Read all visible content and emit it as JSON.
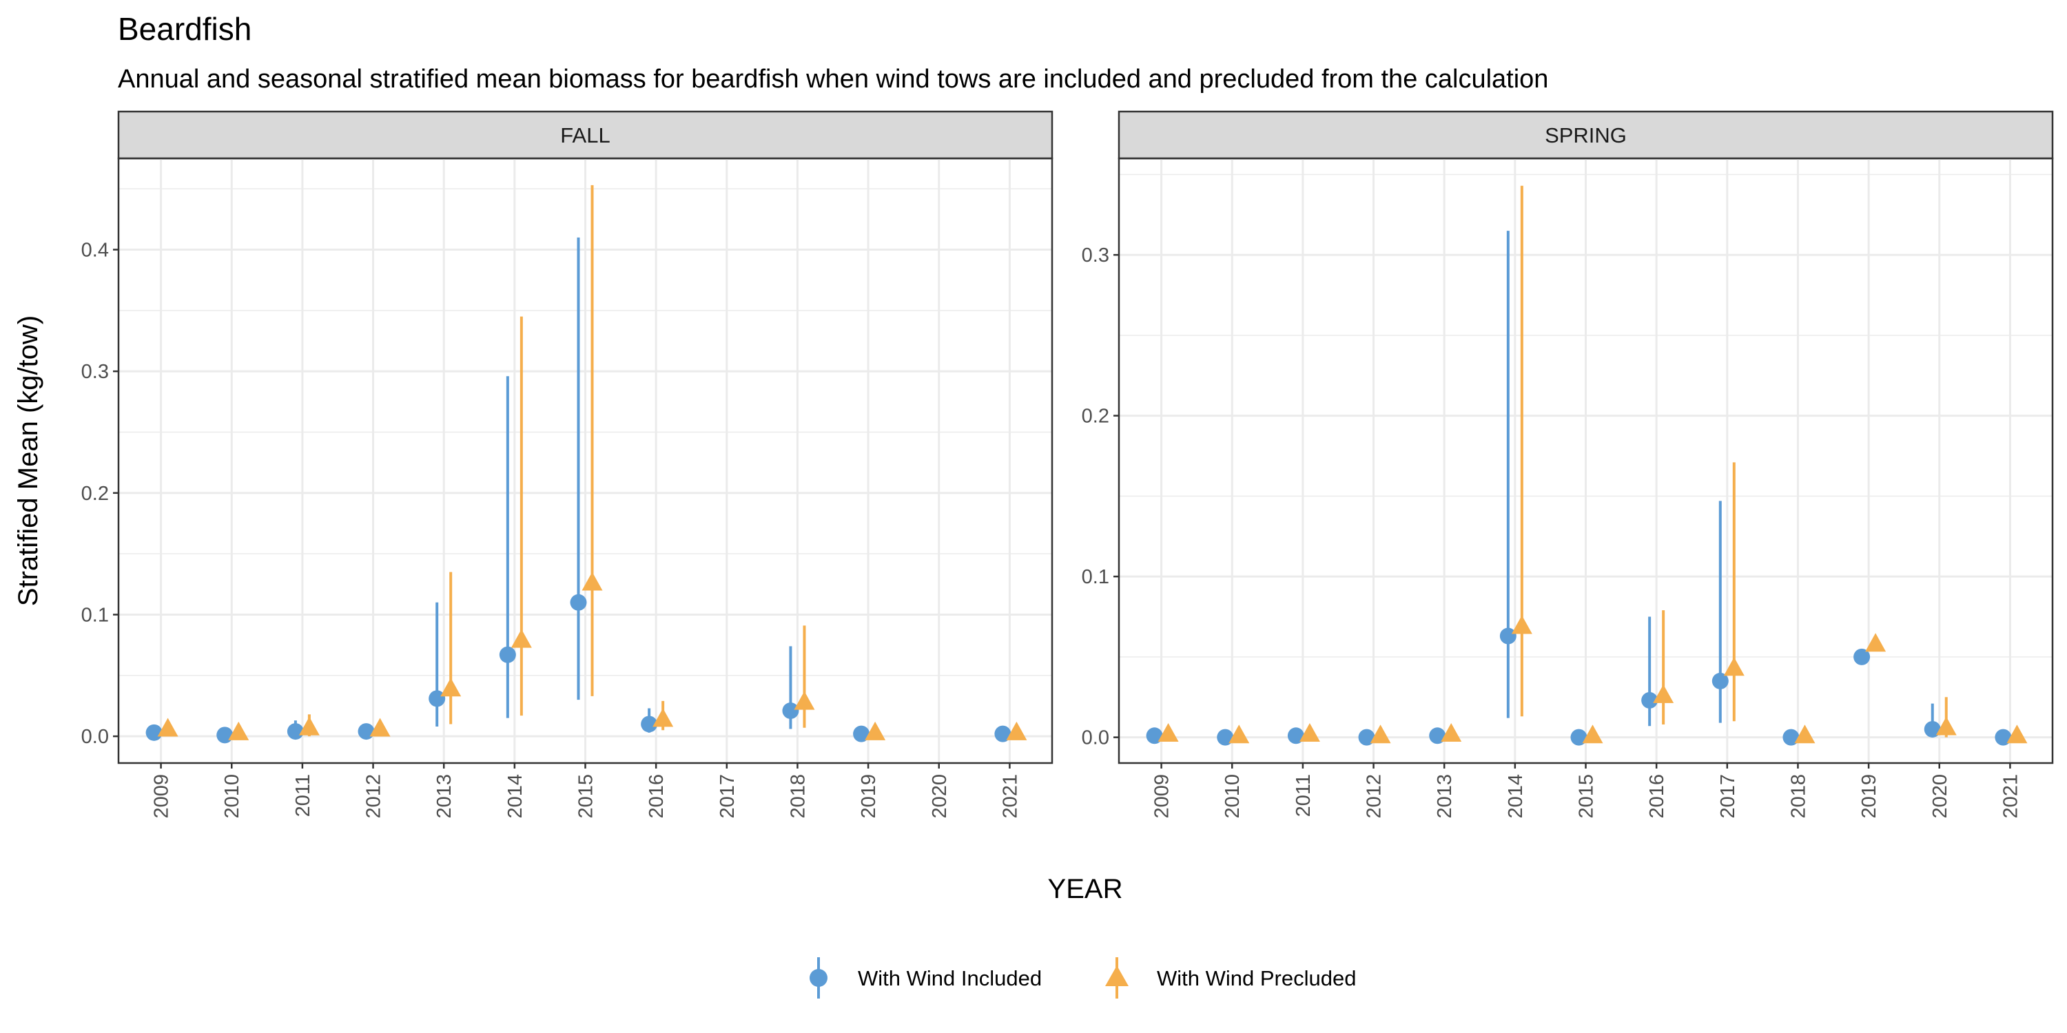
{
  "title": "Beardfish",
  "subtitle": "Annual and seasonal stratified mean biomass for beardfish when wind tows are included and precluded from the calculation",
  "xlabel": "YEAR",
  "ylabel": "Stratified Mean (kg/tow)",
  "legend": {
    "position": "bottom",
    "items": [
      {
        "label": "With Wind Included",
        "color": "#5B9BD5",
        "shape": "circle"
      },
      {
        "label": "With Wind Precluded",
        "color": "#F5AE4C",
        "shape": "triangle"
      }
    ]
  },
  "colors": {
    "included": "#5B9BD5",
    "precluded": "#F5AE4C",
    "strip_bg": "#D9D9D9",
    "grid": "#EBEBEB",
    "panel_border": "#333333"
  },
  "chart_data": [
    {
      "type": "scatter",
      "panel": "FALL",
      "ylim": [
        -0.022,
        0.475
      ],
      "yticks": [
        0.0,
        0.1,
        0.2,
        0.3,
        0.4
      ],
      "ytick_labels": [
        "0.0",
        "0.1",
        "0.2",
        "0.3",
        "0.4"
      ],
      "categories": [
        "2009",
        "2010",
        "2011",
        "2012",
        "2013",
        "2014",
        "2015",
        "2016",
        "2017",
        "2018",
        "2019",
        "2020",
        "2021"
      ],
      "grid": true,
      "series": [
        {
          "name": "With Wind Included",
          "values": [
            0.003,
            0.001,
            0.004,
            0.004,
            0.031,
            0.067,
            0.11,
            0.01,
            null,
            0.021,
            0.002,
            null,
            0.002
          ],
          "lower": [
            0.003,
            0.001,
            0.0,
            0.004,
            0.008,
            0.015,
            0.03,
            0.003,
            null,
            0.006,
            0.002,
            null,
            0.002
          ],
          "upper": [
            0.003,
            0.001,
            0.013,
            0.004,
            0.11,
            0.296,
            0.41,
            0.023,
            null,
            0.074,
            0.002,
            null,
            0.002
          ]
        },
        {
          "name": "With Wind Precluded",
          "values": [
            0.006,
            0.003,
            0.007,
            0.006,
            0.039,
            0.079,
            0.126,
            0.014,
            null,
            0.028,
            0.003,
            null,
            0.003
          ],
          "lower": [
            0.0,
            0.003,
            0.0,
            0.006,
            0.01,
            0.017,
            0.033,
            0.005,
            null,
            0.007,
            0.003,
            null,
            0.003
          ],
          "upper": [
            0.013,
            0.003,
            0.018,
            0.006,
            0.135,
            0.345,
            0.453,
            0.029,
            null,
            0.091,
            0.003,
            null,
            0.003
          ]
        }
      ]
    },
    {
      "type": "scatter",
      "panel": "SPRING",
      "ylim": [
        -0.016,
        0.36
      ],
      "yticks": [
        0.0,
        0.1,
        0.2,
        0.3
      ],
      "ytick_labels": [
        "0.0",
        "0.1",
        "0.2",
        "0.3"
      ],
      "categories": [
        "2009",
        "2010",
        "2011",
        "2012",
        "2013",
        "2014",
        "2015",
        "2016",
        "2017",
        "2018",
        "2019",
        "2020",
        "2021"
      ],
      "grid": true,
      "series": [
        {
          "name": "With Wind Included",
          "values": [
            0.001,
            0.0,
            0.001,
            0.0,
            0.001,
            0.063,
            0.0,
            0.023,
            0.035,
            0.0,
            0.05,
            0.005,
            0.0
          ],
          "lower": [
            0.001,
            0.0,
            0.001,
            0.0,
            0.001,
            0.012,
            0.0,
            0.007,
            0.009,
            0.0,
            0.05,
            0.0,
            0.0
          ],
          "upper": [
            0.001,
            0.0,
            0.001,
            0.0,
            0.001,
            0.315,
            0.0,
            0.075,
            0.147,
            0.0,
            0.05,
            0.021,
            0.0
          ]
        },
        {
          "name": "With Wind Precluded",
          "values": [
            0.002,
            0.001,
            0.002,
            0.001,
            0.002,
            0.069,
            0.001,
            0.026,
            0.043,
            0.001,
            0.058,
            0.006,
            0.001
          ],
          "lower": [
            0.002,
            0.001,
            0.002,
            0.001,
            0.002,
            0.013,
            0.001,
            0.008,
            0.01,
            0.001,
            0.058,
            0.0,
            0.001
          ],
          "upper": [
            0.002,
            0.001,
            0.002,
            0.001,
            0.002,
            0.343,
            0.001,
            0.079,
            0.171,
            0.001,
            0.058,
            0.025,
            0.001
          ]
        }
      ]
    }
  ]
}
